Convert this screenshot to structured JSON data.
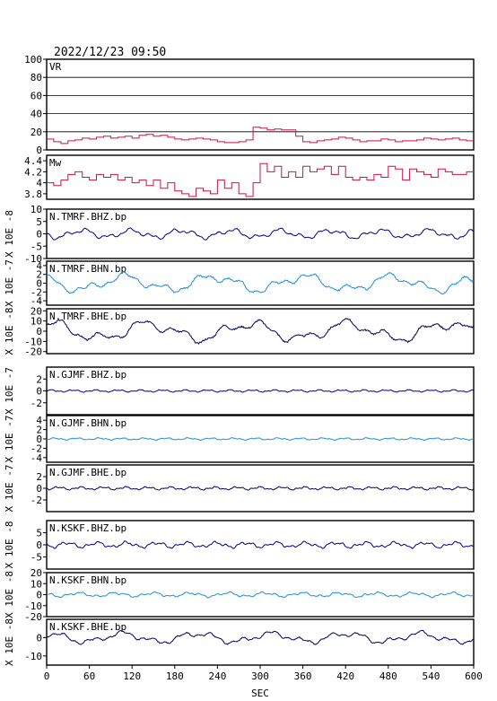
{
  "header": {
    "timestamp": "2022/12/23 09:50"
  },
  "colors": {
    "vr": "#d0103a",
    "mw": "#d0103a",
    "bhz": "#000080",
    "bhn": "#1a8fd8",
    "bhe": "#000060"
  },
  "chart_data": {
    "type": "line",
    "xlabel": "SEC",
    "xlim": [
      0,
      600
    ],
    "xticks": [
      0,
      60,
      120,
      180,
      240,
      300,
      360,
      420,
      480,
      540,
      600
    ],
    "panels": [
      {
        "id": "vr",
        "name": "VR",
        "ylabel": "",
        "ylim": [
          0,
          100
        ],
        "yticks": [
          0,
          20,
          40,
          60,
          80,
          100
        ],
        "grid": true,
        "color": "vr",
        "step": true,
        "points": [
          [
            0,
            12
          ],
          [
            10,
            9
          ],
          [
            20,
            7
          ],
          [
            30,
            10
          ],
          [
            40,
            11
          ],
          [
            50,
            13
          ],
          [
            60,
            12
          ],
          [
            70,
            14
          ],
          [
            80,
            15
          ],
          [
            90,
            13
          ],
          [
            100,
            14
          ],
          [
            110,
            15
          ],
          [
            120,
            13
          ],
          [
            130,
            16
          ],
          [
            140,
            17
          ],
          [
            150,
            15
          ],
          [
            160,
            16
          ],
          [
            170,
            14
          ],
          [
            180,
            12
          ],
          [
            190,
            11
          ],
          [
            200,
            12
          ],
          [
            210,
            13
          ],
          [
            220,
            12
          ],
          [
            230,
            11
          ],
          [
            240,
            9
          ],
          [
            250,
            8
          ],
          [
            260,
            8
          ],
          [
            270,
            9
          ],
          [
            280,
            11
          ],
          [
            290,
            25
          ],
          [
            300,
            24
          ],
          [
            310,
            22
          ],
          [
            320,
            23
          ],
          [
            330,
            22
          ],
          [
            340,
            22
          ],
          [
            350,
            15
          ],
          [
            360,
            9
          ],
          [
            370,
            8
          ],
          [
            380,
            10
          ],
          [
            390,
            11
          ],
          [
            400,
            12
          ],
          [
            410,
            14
          ],
          [
            420,
            13
          ],
          [
            430,
            11
          ],
          [
            440,
            9
          ],
          [
            450,
            10
          ],
          [
            460,
            10
          ],
          [
            470,
            12
          ],
          [
            480,
            11
          ],
          [
            490,
            9
          ],
          [
            500,
            10
          ],
          [
            510,
            10
          ],
          [
            520,
            11
          ],
          [
            530,
            13
          ],
          [
            540,
            12
          ],
          [
            550,
            11
          ],
          [
            560,
            12
          ],
          [
            570,
            13
          ],
          [
            580,
            11
          ],
          [
            590,
            10
          ],
          [
            600,
            10
          ]
        ]
      },
      {
        "id": "mw",
        "name": "Mw",
        "ylabel": "",
        "ylim": [
          3.7,
          4.5
        ],
        "yticks": [
          3.8,
          4.0,
          4.2,
          4.4
        ],
        "grid": false,
        "color": "mw",
        "step": true,
        "points": [
          [
            0,
            4.0
          ],
          [
            10,
            3.95
          ],
          [
            20,
            4.05
          ],
          [
            30,
            4.15
          ],
          [
            40,
            4.2
          ],
          [
            50,
            4.1
          ],
          [
            60,
            4.05
          ],
          [
            70,
            4.15
          ],
          [
            80,
            4.1
          ],
          [
            90,
            4.15
          ],
          [
            100,
            4.05
          ],
          [
            110,
            4.1
          ],
          [
            120,
            4.0
          ],
          [
            130,
            4.05
          ],
          [
            140,
            3.95
          ],
          [
            150,
            4.05
          ],
          [
            160,
            3.9
          ],
          [
            170,
            4.0
          ],
          [
            180,
            3.85
          ],
          [
            190,
            3.8
          ],
          [
            200,
            3.75
          ],
          [
            210,
            3.9
          ],
          [
            220,
            3.85
          ],
          [
            230,
            3.8
          ],
          [
            240,
            4.05
          ],
          [
            250,
            3.9
          ],
          [
            260,
            4.0
          ],
          [
            270,
            3.8
          ],
          [
            280,
            3.75
          ],
          [
            290,
            4.0
          ],
          [
            300,
            4.35
          ],
          [
            310,
            4.2
          ],
          [
            320,
            4.3
          ],
          [
            330,
            4.1
          ],
          [
            340,
            4.2
          ],
          [
            350,
            4.1
          ],
          [
            360,
            4.3
          ],
          [
            370,
            4.2
          ],
          [
            380,
            4.25
          ],
          [
            390,
            4.3
          ],
          [
            400,
            4.15
          ],
          [
            410,
            4.3
          ],
          [
            420,
            4.1
          ],
          [
            430,
            4.05
          ],
          [
            440,
            4.1
          ],
          [
            450,
            4.05
          ],
          [
            460,
            4.15
          ],
          [
            470,
            4.1
          ],
          [
            480,
            4.3
          ],
          [
            490,
            4.25
          ],
          [
            500,
            4.05
          ],
          [
            510,
            4.25
          ],
          [
            520,
            4.2
          ],
          [
            530,
            4.15
          ],
          [
            540,
            4.1
          ],
          [
            550,
            4.25
          ],
          [
            560,
            4.2
          ],
          [
            570,
            4.15
          ],
          [
            580,
            4.15
          ],
          [
            590,
            4.2
          ],
          [
            600,
            4.2
          ]
        ]
      },
      {
        "id": "tmrf_bhz",
        "name": "N.TMRF.BHZ.bp",
        "ylabel": "X 10E -8",
        "ylim": [
          -10,
          10
        ],
        "yticks": [
          -10,
          -5,
          0,
          5,
          10
        ],
        "color": "bhz",
        "amp": 2.5,
        "freq": [
          0.09,
          0.21,
          0.5
        ],
        "seed": 1
      },
      {
        "id": "tmrf_bhn",
        "name": "N.TMRF.BHN.bp",
        "ylabel": "X 10E -7",
        "ylim": [
          -5,
          5
        ],
        "yticks": [
          -4,
          -2,
          0,
          2,
          4
        ],
        "color": "bhn",
        "amp": 2.6,
        "freq": [
          0.05,
          0.12,
          0.3
        ],
        "seed": 2
      },
      {
        "id": "tmrf_bhe",
        "name": "N.TMRF.BHE.bp",
        "ylabel": "X 10E -8",
        "ylim": [
          -22,
          22
        ],
        "yticks": [
          -20,
          -10,
          0,
          10,
          20
        ],
        "color": "bhe",
        "amp": 13,
        "freq": [
          0.045,
          0.11,
          0.25
        ],
        "seed": 3
      },
      {
        "id": "gjmf_bhz",
        "name": "N.GJMF.BHZ.bp",
        "ylabel": "X 10E -7",
        "ylim": [
          -4,
          4
        ],
        "yticks": [
          -2,
          0,
          2
        ],
        "color": "bhz",
        "amp": 0.25,
        "freq": [
          0.2,
          0.5,
          1.1
        ],
        "seed": 4
      },
      {
        "id": "gjmf_bhn",
        "name": "N.GJMF.BHN.bp",
        "ylabel": "X 10E -7",
        "ylim": [
          -5,
          5
        ],
        "yticks": [
          -4,
          -2,
          0,
          2,
          4
        ],
        "color": "bhn",
        "amp": 0.3,
        "freq": [
          0.2,
          0.5,
          1.1
        ],
        "seed": 5
      },
      {
        "id": "gjmf_bhe",
        "name": "N.GJMF.BHE.bp",
        "ylabel": "X 10E -7",
        "ylim": [
          -4,
          4
        ],
        "yticks": [
          -2,
          0,
          2
        ],
        "color": "bhe",
        "amp": 0.35,
        "freq": [
          0.2,
          0.5,
          1.1
        ],
        "seed": 6
      },
      {
        "id": "kskf_bhz",
        "name": "N.KSKF.BHZ.bp",
        "ylabel": "X 10E -8",
        "ylim": [
          -10,
          10
        ],
        "yticks": [
          -5,
          0,
          5
        ],
        "color": "bhz",
        "amp": 1.6,
        "freq": [
          0.15,
          0.35,
          0.8
        ],
        "seed": 7
      },
      {
        "id": "kskf_bhn",
        "name": "N.KSKF.BHN.bp",
        "ylabel": "X 10E -8",
        "ylim": [
          -20,
          20
        ],
        "yticks": [
          -20,
          -10,
          0,
          10,
          20
        ],
        "color": "bhn",
        "amp": 2.8,
        "freq": [
          0.12,
          0.3,
          0.7
        ],
        "seed": 8
      },
      {
        "id": "kskf_bhe",
        "name": "N.KSKF.BHE.bp",
        "ylabel": "X 10E -8",
        "ylim": [
          -15,
          10
        ],
        "yticks": [
          -10,
          0
        ],
        "color": "bhe",
        "amp": 4,
        "freq": [
          0.06,
          0.15,
          0.4
        ],
        "seed": 9
      }
    ]
  }
}
